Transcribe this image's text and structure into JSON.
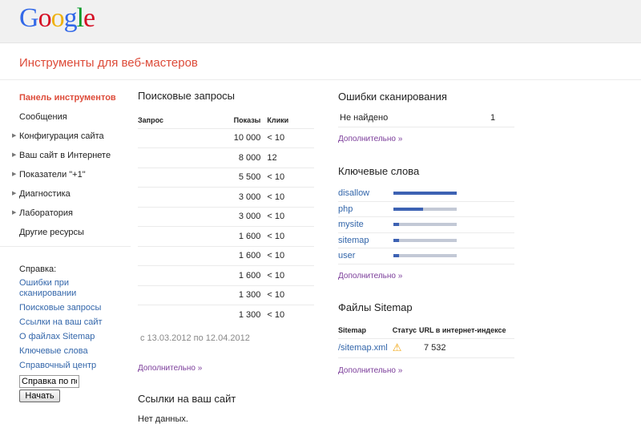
{
  "header": {
    "logo": "Google",
    "title": "Инструменты для веб-мастеров"
  },
  "sidebar": {
    "items": [
      {
        "label": "Панель инструментов",
        "active": true,
        "expandable": false
      },
      {
        "label": "Сообщения",
        "expandable": false
      },
      {
        "label": "Конфигурация сайта",
        "expandable": true
      },
      {
        "label": "Ваш сайт в Интернете",
        "expandable": true
      },
      {
        "label": "Показатели \"+1\"",
        "expandable": true
      },
      {
        "label": "Диагностика",
        "expandable": true
      },
      {
        "label": "Лаборатория",
        "expandable": true
      },
      {
        "label": "Другие ресурсы",
        "expandable": false
      }
    ]
  },
  "help": {
    "heading": "Справка:",
    "links": [
      "Ошибки при сканировании",
      "Поисковые запросы",
      "Ссылки на ваш сайт",
      "О файлах Sitemap",
      "Ключевые слова",
      "Справочный центр"
    ],
    "search_value": "Справка по поиску",
    "button": "Начать"
  },
  "queries": {
    "title": "Поисковые запросы",
    "columns": [
      "Запрос",
      "Показы",
      "Клики"
    ],
    "rows": [
      {
        "impressions": "10 000",
        "clicks": "< 10"
      },
      {
        "impressions": "8 000",
        "clicks": "12"
      },
      {
        "impressions": "5 500",
        "clicks": "< 10"
      },
      {
        "impressions": "3 000",
        "clicks": "< 10"
      },
      {
        "impressions": "3 000",
        "clicks": "< 10"
      },
      {
        "impressions": "1 600",
        "clicks": "< 10"
      },
      {
        "impressions": "1 600",
        "clicks": "< 10"
      },
      {
        "impressions": "1 600",
        "clicks": "< 10"
      },
      {
        "impressions": "1 300",
        "clicks": "< 10"
      },
      {
        "impressions": "1 300",
        "clicks": "< 10"
      }
    ],
    "date_range": "с 13.03.2012 по 12.04.2012",
    "more": "Дополнительно »"
  },
  "links": {
    "title": "Ссылки на ваш сайт",
    "empty": "Нет данных."
  },
  "crawl_errors": {
    "title": "Ошибки сканирования",
    "rows": [
      {
        "label": "Не найдено",
        "count": "1"
      }
    ],
    "more": "Дополнительно »"
  },
  "keywords": {
    "title": "Ключевые слова",
    "items": [
      {
        "word": "disallow",
        "level": 1.0
      },
      {
        "word": "php",
        "level": 0.47
      },
      {
        "word": "mysite",
        "level": 0.09
      },
      {
        "word": "sitemap",
        "level": 0.09
      },
      {
        "word": "user",
        "level": 0.09
      }
    ],
    "more": "Дополнительно »",
    "colors": {
      "fill": "#3d62b3",
      "track": "#c3c9d6"
    }
  },
  "sitemaps": {
    "title": "Файлы Sitemap",
    "columns": [
      "Sitemap",
      "Статус",
      "URL в интернет-индексе"
    ],
    "rows": [
      {
        "file": "/sitemap.xml",
        "status": "warning-icon",
        "indexed": "7 532"
      }
    ],
    "more": "Дополнительно »"
  }
}
